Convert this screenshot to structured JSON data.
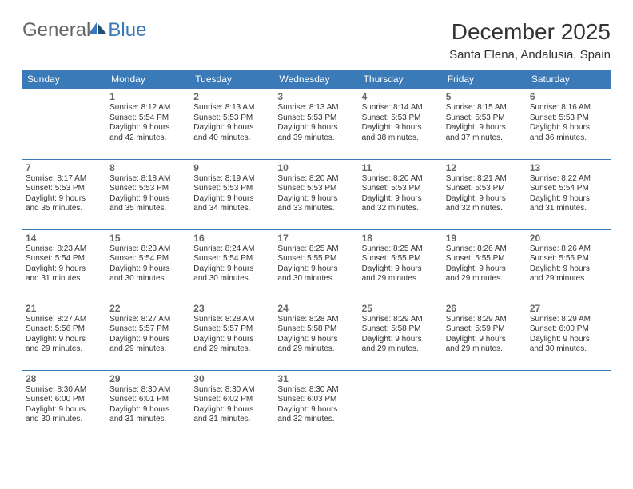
{
  "logo": {
    "text1": "General",
    "text2": "Blue"
  },
  "title": "December 2025",
  "location": "Santa Elena, Andalusia, Spain",
  "colors": {
    "header_bg": "#3a7ab8",
    "header_fg": "#ffffff",
    "rule": "#3a7ab8",
    "logo_gray": "#666666",
    "logo_blue": "#3a7ab8",
    "text": "#333333",
    "daynum": "#666666",
    "background": "#ffffff"
  },
  "typography": {
    "title_fontsize": 28,
    "location_fontsize": 15,
    "th_fontsize": 12,
    "daynum_fontsize": 12,
    "cell_fontsize": 10
  },
  "days": [
    "Sunday",
    "Monday",
    "Tuesday",
    "Wednesday",
    "Thursday",
    "Friday",
    "Saturday"
  ],
  "weeks": [
    [
      null,
      {
        "n": "1",
        "sr": "Sunrise: 8:12 AM",
        "ss": "Sunset: 5:54 PM",
        "d1": "Daylight: 9 hours",
        "d2": "and 42 minutes."
      },
      {
        "n": "2",
        "sr": "Sunrise: 8:13 AM",
        "ss": "Sunset: 5:53 PM",
        "d1": "Daylight: 9 hours",
        "d2": "and 40 minutes."
      },
      {
        "n": "3",
        "sr": "Sunrise: 8:13 AM",
        "ss": "Sunset: 5:53 PM",
        "d1": "Daylight: 9 hours",
        "d2": "and 39 minutes."
      },
      {
        "n": "4",
        "sr": "Sunrise: 8:14 AM",
        "ss": "Sunset: 5:53 PM",
        "d1": "Daylight: 9 hours",
        "d2": "and 38 minutes."
      },
      {
        "n": "5",
        "sr": "Sunrise: 8:15 AM",
        "ss": "Sunset: 5:53 PM",
        "d1": "Daylight: 9 hours",
        "d2": "and 37 minutes."
      },
      {
        "n": "6",
        "sr": "Sunrise: 8:16 AM",
        "ss": "Sunset: 5:53 PM",
        "d1": "Daylight: 9 hours",
        "d2": "and 36 minutes."
      }
    ],
    [
      {
        "n": "7",
        "sr": "Sunrise: 8:17 AM",
        "ss": "Sunset: 5:53 PM",
        "d1": "Daylight: 9 hours",
        "d2": "and 35 minutes."
      },
      {
        "n": "8",
        "sr": "Sunrise: 8:18 AM",
        "ss": "Sunset: 5:53 PM",
        "d1": "Daylight: 9 hours",
        "d2": "and 35 minutes."
      },
      {
        "n": "9",
        "sr": "Sunrise: 8:19 AM",
        "ss": "Sunset: 5:53 PM",
        "d1": "Daylight: 9 hours",
        "d2": "and 34 minutes."
      },
      {
        "n": "10",
        "sr": "Sunrise: 8:20 AM",
        "ss": "Sunset: 5:53 PM",
        "d1": "Daylight: 9 hours",
        "d2": "and 33 minutes."
      },
      {
        "n": "11",
        "sr": "Sunrise: 8:20 AM",
        "ss": "Sunset: 5:53 PM",
        "d1": "Daylight: 9 hours",
        "d2": "and 32 minutes."
      },
      {
        "n": "12",
        "sr": "Sunrise: 8:21 AM",
        "ss": "Sunset: 5:53 PM",
        "d1": "Daylight: 9 hours",
        "d2": "and 32 minutes."
      },
      {
        "n": "13",
        "sr": "Sunrise: 8:22 AM",
        "ss": "Sunset: 5:54 PM",
        "d1": "Daylight: 9 hours",
        "d2": "and 31 minutes."
      }
    ],
    [
      {
        "n": "14",
        "sr": "Sunrise: 8:23 AM",
        "ss": "Sunset: 5:54 PM",
        "d1": "Daylight: 9 hours",
        "d2": "and 31 minutes."
      },
      {
        "n": "15",
        "sr": "Sunrise: 8:23 AM",
        "ss": "Sunset: 5:54 PM",
        "d1": "Daylight: 9 hours",
        "d2": "and 30 minutes."
      },
      {
        "n": "16",
        "sr": "Sunrise: 8:24 AM",
        "ss": "Sunset: 5:54 PM",
        "d1": "Daylight: 9 hours",
        "d2": "and 30 minutes."
      },
      {
        "n": "17",
        "sr": "Sunrise: 8:25 AM",
        "ss": "Sunset: 5:55 PM",
        "d1": "Daylight: 9 hours",
        "d2": "and 30 minutes."
      },
      {
        "n": "18",
        "sr": "Sunrise: 8:25 AM",
        "ss": "Sunset: 5:55 PM",
        "d1": "Daylight: 9 hours",
        "d2": "and 29 minutes."
      },
      {
        "n": "19",
        "sr": "Sunrise: 8:26 AM",
        "ss": "Sunset: 5:55 PM",
        "d1": "Daylight: 9 hours",
        "d2": "and 29 minutes."
      },
      {
        "n": "20",
        "sr": "Sunrise: 8:26 AM",
        "ss": "Sunset: 5:56 PM",
        "d1": "Daylight: 9 hours",
        "d2": "and 29 minutes."
      }
    ],
    [
      {
        "n": "21",
        "sr": "Sunrise: 8:27 AM",
        "ss": "Sunset: 5:56 PM",
        "d1": "Daylight: 9 hours",
        "d2": "and 29 minutes."
      },
      {
        "n": "22",
        "sr": "Sunrise: 8:27 AM",
        "ss": "Sunset: 5:57 PM",
        "d1": "Daylight: 9 hours",
        "d2": "and 29 minutes."
      },
      {
        "n": "23",
        "sr": "Sunrise: 8:28 AM",
        "ss": "Sunset: 5:57 PM",
        "d1": "Daylight: 9 hours",
        "d2": "and 29 minutes."
      },
      {
        "n": "24",
        "sr": "Sunrise: 8:28 AM",
        "ss": "Sunset: 5:58 PM",
        "d1": "Daylight: 9 hours",
        "d2": "and 29 minutes."
      },
      {
        "n": "25",
        "sr": "Sunrise: 8:29 AM",
        "ss": "Sunset: 5:58 PM",
        "d1": "Daylight: 9 hours",
        "d2": "and 29 minutes."
      },
      {
        "n": "26",
        "sr": "Sunrise: 8:29 AM",
        "ss": "Sunset: 5:59 PM",
        "d1": "Daylight: 9 hours",
        "d2": "and 29 minutes."
      },
      {
        "n": "27",
        "sr": "Sunrise: 8:29 AM",
        "ss": "Sunset: 6:00 PM",
        "d1": "Daylight: 9 hours",
        "d2": "and 30 minutes."
      }
    ],
    [
      {
        "n": "28",
        "sr": "Sunrise: 8:30 AM",
        "ss": "Sunset: 6:00 PM",
        "d1": "Daylight: 9 hours",
        "d2": "and 30 minutes."
      },
      {
        "n": "29",
        "sr": "Sunrise: 8:30 AM",
        "ss": "Sunset: 6:01 PM",
        "d1": "Daylight: 9 hours",
        "d2": "and 31 minutes."
      },
      {
        "n": "30",
        "sr": "Sunrise: 8:30 AM",
        "ss": "Sunset: 6:02 PM",
        "d1": "Daylight: 9 hours",
        "d2": "and 31 minutes."
      },
      {
        "n": "31",
        "sr": "Sunrise: 8:30 AM",
        "ss": "Sunset: 6:03 PM",
        "d1": "Daylight: 9 hours",
        "d2": "and 32 minutes."
      },
      null,
      null,
      null
    ]
  ]
}
